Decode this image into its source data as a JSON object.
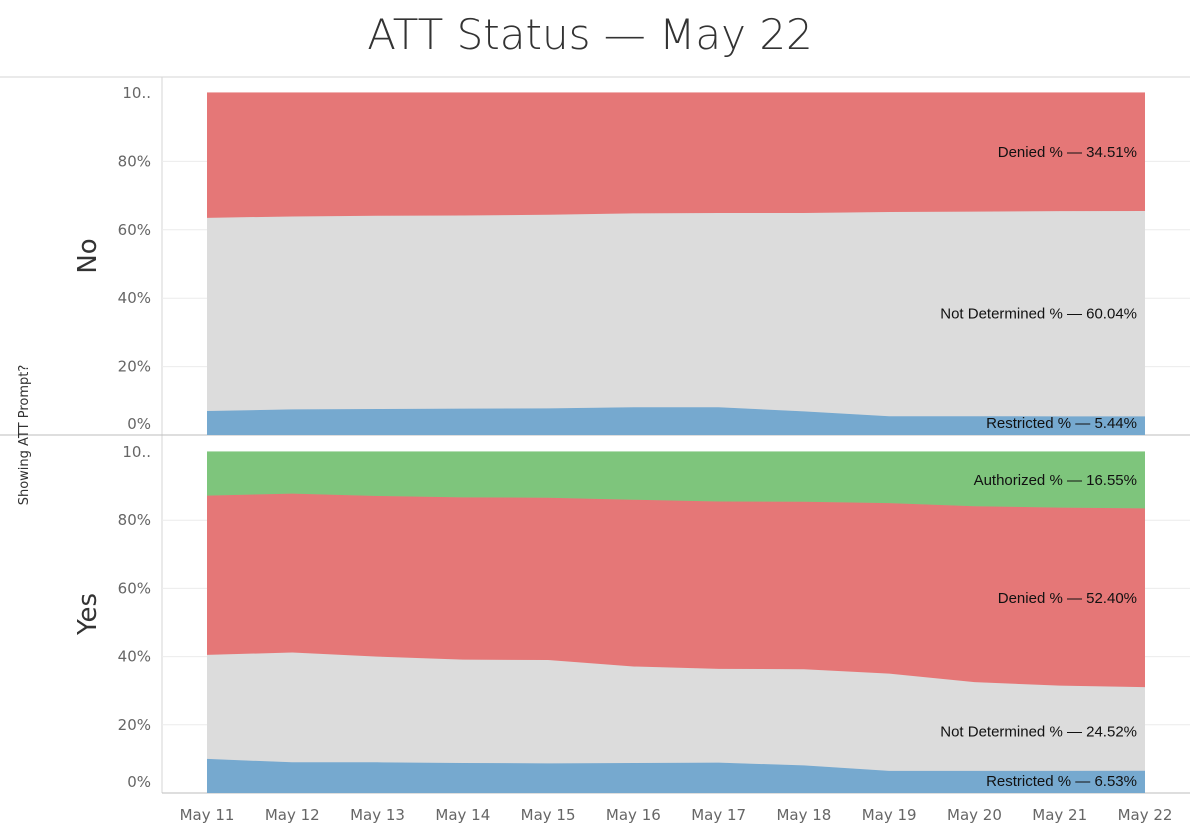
{
  "chart_data": {
    "type": "area",
    "title": "ATT Status — May 22",
    "ylabel": "Showing ATT Prompt?",
    "xlabel": "",
    "x": [
      "May 11",
      "May 12",
      "May 13",
      "May 14",
      "May 15",
      "May 16",
      "May 17",
      "May 18",
      "May 19",
      "May 20",
      "May 21",
      "May 22"
    ],
    "y_ticks": [
      "0%",
      "20%",
      "40%",
      "60%",
      "80%",
      "10.."
    ],
    "ylim": [
      0,
      100
    ],
    "stacked": true,
    "grid": "horizontal",
    "colors": {
      "Restricted": "#76a9cf",
      "Not Determined": "#dcdcdc",
      "Denied": "#e57777",
      "Authorized": "#7ec57c"
    },
    "panels": [
      {
        "row_label": "No",
        "series": [
          {
            "name": "Restricted",
            "values": [
              7.0,
              7.5,
              7.6,
              7.7,
              7.8,
              8.1,
              8.1,
              6.9,
              5.5,
              5.5,
              5.45,
              5.44
            ]
          },
          {
            "name": "Not Determined",
            "values": [
              56.5,
              56.4,
              56.5,
              56.5,
              56.6,
              56.7,
              56.8,
              58.0,
              59.7,
              59.8,
              60.0,
              60.04
            ]
          },
          {
            "name": "Denied",
            "values": [
              36.5,
              36.1,
              35.9,
              35.8,
              35.6,
              35.2,
              35.1,
              35.1,
              34.8,
              34.7,
              34.55,
              34.51
            ]
          }
        ],
        "labels": [
          {
            "series": "Denied",
            "text": "Denied % — 34.51%"
          },
          {
            "series": "Not Determined",
            "text": "Not Determined % — 60.04%"
          },
          {
            "series": "Restricted",
            "text": "Restricted % — 5.44%"
          }
        ]
      },
      {
        "row_label": "Yes",
        "series": [
          {
            "name": "Restricted",
            "values": [
              10.0,
              9.0,
              9.0,
              8.8,
              8.7,
              8.8,
              8.9,
              8.1,
              6.5,
              6.5,
              6.5,
              6.53
            ]
          },
          {
            "name": "Not Determined",
            "values": [
              30.5,
              32.2,
              31.0,
              30.3,
              30.3,
              28.3,
              27.5,
              28.2,
              28.5,
              26.0,
              25.0,
              24.52
            ]
          },
          {
            "name": "Denied",
            "values": [
              46.7,
              46.6,
              47.1,
              47.6,
              47.6,
              48.9,
              49.1,
              49.1,
              50.0,
              51.6,
              52.2,
              52.4
            ]
          },
          {
            "name": "Authorized",
            "values": [
              12.8,
              12.2,
              12.9,
              13.3,
              13.4,
              14.0,
              14.5,
              14.6,
              15.0,
              15.9,
              16.3,
              16.55
            ]
          }
        ],
        "labels": [
          {
            "series": "Authorized",
            "text": "Authorized % — 16.55%"
          },
          {
            "series": "Denied",
            "text": "Denied % — 52.40%"
          },
          {
            "series": "Not Determined",
            "text": "Not Determined % — 24.52%"
          },
          {
            "series": "Restricted",
            "text": "Restricted % — 6.53%"
          }
        ]
      }
    ]
  }
}
